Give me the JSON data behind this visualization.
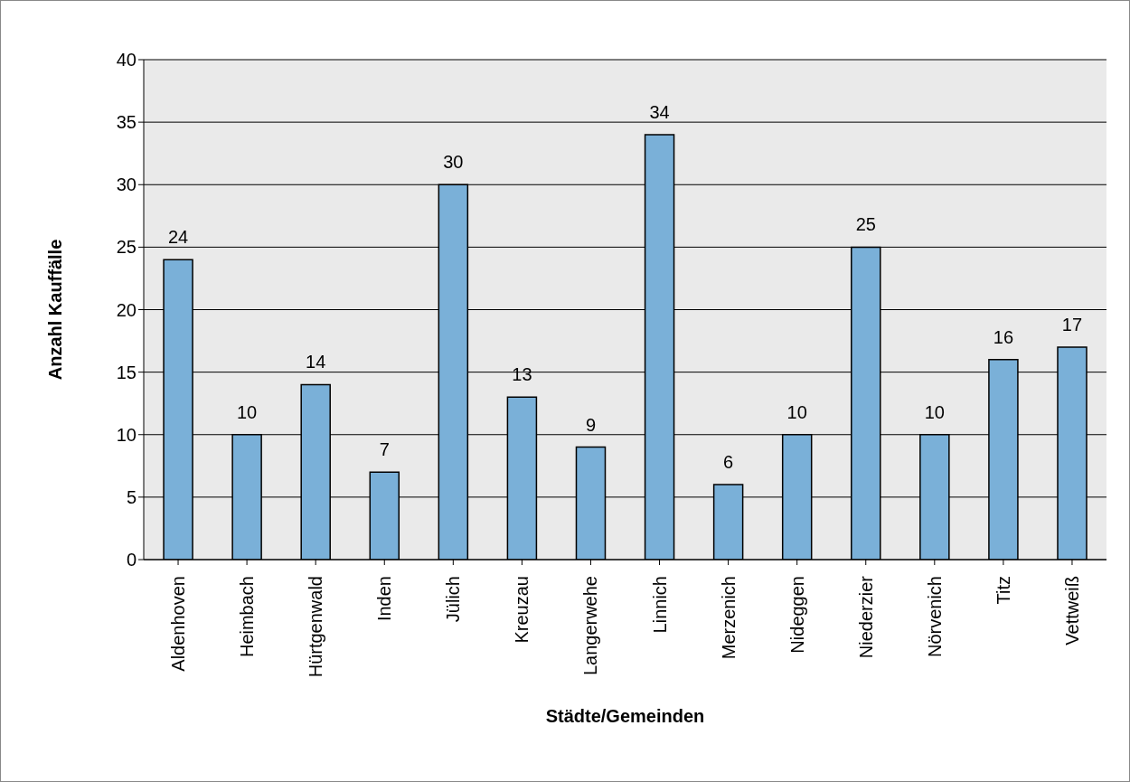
{
  "chart_data": {
    "type": "bar",
    "xlabel": "Städte/Gemeinden",
    "ylabel": "Anzahl Kauffälle",
    "categories": [
      "Aldenhoven",
      "Heimbach",
      "Hürtgenwald",
      "Inden",
      "Jülich",
      "Kreuzau",
      "Langerwehe",
      "Linnich",
      "Merzenich",
      "Nideggen",
      "Niederzier",
      "Nörvenich",
      "Titz",
      "Vettweiß"
    ],
    "values": [
      24,
      10,
      14,
      7,
      30,
      13,
      9,
      34,
      6,
      10,
      25,
      10,
      16,
      17
    ],
    "color": "#7ab0d8",
    "ylim": [
      0,
      40
    ],
    "yticks": [
      0,
      5,
      10,
      15,
      20,
      25,
      30,
      35,
      40
    ],
    "grid": "y",
    "data_labels": true
  }
}
